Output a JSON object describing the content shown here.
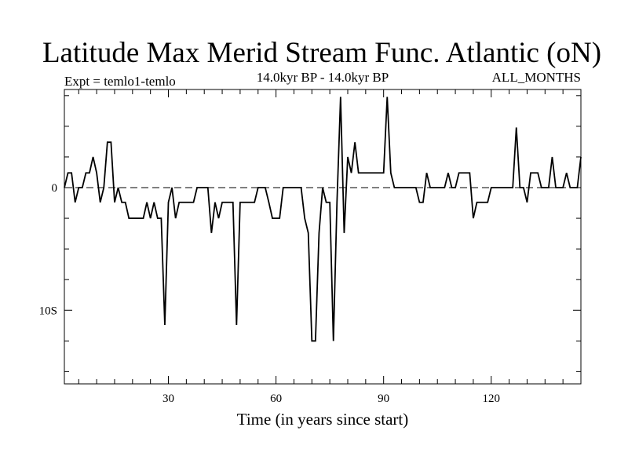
{
  "chart_data": {
    "type": "line",
    "title": "Latitude Max Merid Stream Func. Atlantic (oN)",
    "subtitle_left": "Expt = temlo1-temlo",
    "subtitle_center": "14.0kyr BP - 14.0kyr BP",
    "subtitle_right": "ALL_MONTHS",
    "xlabel": "Time (in years since start)",
    "ylabel": "",
    "xlim": [
      1,
      145
    ],
    "ylim": [
      -16,
      8
    ],
    "x_ticks": [
      30,
      60,
      90,
      120
    ],
    "x_tick_labels": [
      "30",
      "60",
      "90",
      "120"
    ],
    "y_ticks": [
      0,
      -10
    ],
    "y_tick_labels": [
      "0",
      "10S"
    ],
    "grid": false,
    "series": [
      {
        "color": "#000000",
        "dash": "solid",
        "points": [
          [
            1,
            0
          ],
          [
            2,
            1.2
          ],
          [
            3,
            1.2
          ],
          [
            4,
            -1.2
          ],
          [
            5,
            0
          ],
          [
            6,
            0
          ],
          [
            7,
            1.2
          ],
          [
            8,
            1.2
          ],
          [
            9,
            2.5
          ],
          [
            10,
            1.2
          ],
          [
            11,
            -1.2
          ],
          [
            12,
            0
          ],
          [
            13,
            3.7
          ],
          [
            14,
            3.7
          ],
          [
            15,
            -1.2
          ],
          [
            16,
            0
          ],
          [
            17,
            -1.2
          ],
          [
            18,
            -1.2
          ],
          [
            19,
            -2.5
          ],
          [
            20,
            -2.5
          ],
          [
            21,
            -2.5
          ],
          [
            22,
            -2.5
          ],
          [
            23,
            -2.5
          ],
          [
            24,
            -1.2
          ],
          [
            25,
            -2.5
          ],
          [
            26,
            -1.2
          ],
          [
            27,
            -2.5
          ],
          [
            28,
            -2.5
          ],
          [
            29,
            -11.2
          ],
          [
            30,
            -1.2
          ],
          [
            31,
            0
          ],
          [
            32,
            -2.5
          ],
          [
            33,
            -1.2
          ],
          [
            34,
            -1.2
          ],
          [
            35,
            -1.2
          ],
          [
            36,
            -1.2
          ],
          [
            37,
            -1.2
          ],
          [
            38,
            0
          ],
          [
            39,
            0
          ],
          [
            40,
            0
          ],
          [
            41,
            0
          ],
          [
            42,
            -3.7
          ],
          [
            43,
            -1.2
          ],
          [
            44,
            -2.5
          ],
          [
            45,
            -1.2
          ],
          [
            46,
            -1.2
          ],
          [
            47,
            -1.2
          ],
          [
            48,
            -1.2
          ],
          [
            49,
            -11.2
          ],
          [
            50,
            -1.2
          ],
          [
            51,
            -1.2
          ],
          [
            52,
            -1.2
          ],
          [
            53,
            -1.2
          ],
          [
            54,
            -1.2
          ],
          [
            55,
            0
          ],
          [
            56,
            0
          ],
          [
            57,
            0
          ],
          [
            58,
            -1.2
          ],
          [
            59,
            -2.5
          ],
          [
            60,
            -2.5
          ],
          [
            61,
            -2.5
          ],
          [
            62,
            0
          ],
          [
            63,
            0
          ],
          [
            64,
            0
          ],
          [
            65,
            0
          ],
          [
            66,
            0
          ],
          [
            67,
            0
          ],
          [
            68,
            -2.5
          ],
          [
            69,
            -3.7
          ],
          [
            70,
            -12.5
          ],
          [
            71,
            -12.5
          ],
          [
            72,
            -3.7
          ],
          [
            73,
            0
          ],
          [
            74,
            -1.2
          ],
          [
            75,
            -1.2
          ],
          [
            76,
            -12.5
          ],
          [
            77,
            -1.2
          ],
          [
            78,
            7.4
          ],
          [
            79,
            -3.7
          ],
          [
            80,
            2.5
          ],
          [
            81,
            1.2
          ],
          [
            82,
            3.7
          ],
          [
            83,
            1.2
          ],
          [
            84,
            1.2
          ],
          [
            85,
            1.2
          ],
          [
            86,
            1.2
          ],
          [
            87,
            1.2
          ],
          [
            88,
            1.2
          ],
          [
            89,
            1.2
          ],
          [
            90,
            1.2
          ],
          [
            91,
            7.4
          ],
          [
            92,
            1.2
          ],
          [
            93,
            0
          ],
          [
            94,
            0
          ],
          [
            95,
            0
          ],
          [
            96,
            0
          ],
          [
            97,
            0
          ],
          [
            98,
            0
          ],
          [
            99,
            0
          ],
          [
            100,
            -1.2
          ],
          [
            101,
            -1.2
          ],
          [
            102,
            1.2
          ],
          [
            103,
            0
          ],
          [
            104,
            0
          ],
          [
            105,
            0
          ],
          [
            106,
            0
          ],
          [
            107,
            0
          ],
          [
            108,
            1.2
          ],
          [
            109,
            0
          ],
          [
            110,
            0
          ],
          [
            111,
            1.2
          ],
          [
            112,
            1.2
          ],
          [
            113,
            1.2
          ],
          [
            114,
            1.2
          ],
          [
            115,
            -2.5
          ],
          [
            116,
            -1.2
          ],
          [
            117,
            -1.2
          ],
          [
            118,
            -1.2
          ],
          [
            119,
            -1.2
          ],
          [
            120,
            0
          ],
          [
            121,
            0
          ],
          [
            122,
            0
          ],
          [
            123,
            0
          ],
          [
            124,
            0
          ],
          [
            125,
            0
          ],
          [
            126,
            0
          ],
          [
            127,
            4.9
          ],
          [
            128,
            0
          ],
          [
            129,
            0
          ],
          [
            130,
            -1.2
          ],
          [
            131,
            1.2
          ],
          [
            132,
            1.2
          ],
          [
            133,
            1.2
          ],
          [
            134,
            0
          ],
          [
            135,
            0
          ],
          [
            136,
            0
          ],
          [
            137,
            2.5
          ],
          [
            138,
            0
          ],
          [
            139,
            0
          ],
          [
            140,
            0
          ],
          [
            141,
            1.2
          ],
          [
            142,
            0
          ],
          [
            143,
            0
          ],
          [
            144,
            0
          ],
          [
            145,
            2.5
          ]
        ]
      }
    ],
    "reference_line": {
      "y": 0,
      "style": "dashed"
    }
  }
}
